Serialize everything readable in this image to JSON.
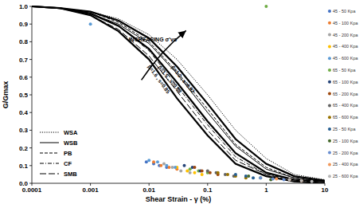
{
  "chart_data": {
    "type": "line",
    "y_label": "G/Gmax",
    "x_label": "Shear Strain - γ (%)",
    "log": "x",
    "grid": false,
    "legend": "lower left",
    "xlim": [
      0.0001,
      10
    ],
    "xticks": [
      0.0001,
      0.001,
      0.01,
      0.1,
      1,
      10
    ],
    "ylim": [
      0,
      1
    ],
    "yticks": [
      {
        "value": 0,
        "label": "0.0"
      },
      0.1,
      0.2,
      0.3,
      0.4,
      0.5,
      0.6,
      0.7,
      0.8,
      0.9,
      {
        "value": 1,
        "label": "1.0"
      }
    ],
    "annotations": [
      {
        "text": "INCREASING σ'vo",
        "x": 0.0045,
        "y": 0.8
      }
    ],
    "series": [
      {
        "name": "WSA",
        "type": "line",
        "color": "#000000",
        "line_style": "dotted",
        "x": [
          0.0001,
          0.0003,
          0.001,
          0.003,
          0.01,
          0.03,
          0.1,
          0.3,
          1,
          3,
          10
        ],
        "values": [
          1.0,
          0.99,
          0.97,
          0.93,
          0.84,
          0.7,
          0.5,
          0.3,
          0.14,
          0.05,
          0.02
        ]
      },
      {
        "name": "WSB",
        "type": "line",
        "color": "#000000",
        "line_style": "solid",
        "x": [
          0.0001,
          0.0003,
          0.001,
          0.003,
          0.01,
          0.03,
          0.1,
          0.3,
          1,
          3,
          10
        ],
        "values": [
          1.0,
          0.99,
          0.96,
          0.9,
          0.79,
          0.62,
          0.4,
          0.21,
          0.08,
          0.03,
          0.01
        ]
      },
      {
        "name": "PB",
        "type": "line",
        "color": "#000000",
        "line_style": "dashed",
        "x": [
          0.0001,
          0.0003,
          0.001,
          0.003,
          0.01,
          0.03,
          0.1,
          0.3,
          1,
          3,
          10
        ],
        "values": [
          1.0,
          0.99,
          0.97,
          0.91,
          0.8,
          0.63,
          0.42,
          0.22,
          0.09,
          0.03,
          0.01
        ]
      },
      {
        "name": "CF",
        "type": "line",
        "color": "#000000",
        "line_style": "dashdot",
        "x": [
          0.0001,
          0.0003,
          0.001,
          0.003,
          0.01,
          0.03,
          0.1,
          0.3,
          1,
          3,
          10
        ],
        "values": [
          1.0,
          0.99,
          0.96,
          0.89,
          0.75,
          0.55,
          0.33,
          0.15,
          0.05,
          0.02,
          0.0
        ]
      },
      {
        "name": "SMB",
        "type": "line",
        "color": "#000000",
        "line_style": "longdash",
        "x": [
          0.0001,
          0.0003,
          0.001,
          0.003,
          0.01,
          0.03,
          0.1,
          0.3,
          1,
          3,
          10
        ],
        "values": [
          1.0,
          0.99,
          0.95,
          0.87,
          0.72,
          0.52,
          0.3,
          0.13,
          0.05,
          0.01,
          0.0
        ]
      },
      {
        "name": "β=1.2 , s=0.92",
        "type": "line",
        "color": "#000000",
        "line_style": "bold",
        "x": [
          0.0001,
          0.0003,
          0.001,
          0.003,
          0.01,
          0.03,
          0.1,
          0.3,
          1,
          3,
          10
        ],
        "values": [
          1.0,
          0.99,
          0.97,
          0.92,
          0.82,
          0.66,
          0.45,
          0.25,
          0.11,
          0.04,
          0.015
        ]
      },
      {
        "name": "β=1.5 , s=0.88",
        "type": "line",
        "color": "#000000",
        "line_style": "bold",
        "x": [
          0.0001,
          0.0003,
          0.001,
          0.003,
          0.01,
          0.03,
          0.1,
          0.3,
          1,
          3,
          10
        ],
        "values": [
          1.0,
          0.99,
          0.96,
          0.89,
          0.76,
          0.57,
          0.35,
          0.17,
          0.06,
          0.02,
          0.01
        ]
      },
      {
        "name": "β=1.6 , s=0.85",
        "type": "line",
        "color": "#000000",
        "line_style": "bold",
        "x": [
          0.0001,
          0.0003,
          0.001,
          0.003,
          0.01,
          0.03,
          0.1,
          0.3,
          1,
          3,
          10
        ],
        "values": [
          1.0,
          0.99,
          0.95,
          0.86,
          0.7,
          0.48,
          0.27,
          0.11,
          0.04,
          0.01,
          0.0
        ]
      },
      {
        "name": "45 - 50 Kpa",
        "type": "scatter",
        "marker": "circle",
        "color": "#4472c4",
        "x": [
          0.009,
          0.012,
          0.015,
          0.02
        ],
        "values": [
          0.12,
          0.11,
          0.1,
          0.09
        ]
      },
      {
        "name": "45 - 100 Kpa",
        "type": "scatter",
        "marker": "circle",
        "color": "#ed7d31",
        "x": [
          0.012,
          0.016,
          0.022,
          0.03
        ],
        "values": [
          0.12,
          0.1,
          0.09,
          0.08
        ]
      },
      {
        "name": "45 - 200 Kpa",
        "type": "scatter",
        "marker": "circle",
        "color": "#a5a5a5",
        "x": [
          0.018,
          0.025,
          0.035,
          0.05
        ],
        "values": [
          0.11,
          0.09,
          0.07,
          0.06
        ]
      },
      {
        "name": "45 - 400 Kpa",
        "type": "scatter",
        "marker": "circle",
        "color": "#ffc000",
        "x": [
          0.03,
          0.045,
          0.06,
          0.08
        ],
        "values": [
          0.09,
          0.07,
          0.06,
          0.05
        ]
      },
      {
        "name": "45 - 600 Kpa",
        "type": "scatter",
        "marker": "circle",
        "color": "#5b9bd5",
        "x": [
          0.001,
          0.01,
          0.014,
          0.02,
          0.028
        ],
        "values": [
          0.9,
          0.13,
          0.12,
          0.1,
          0.09
        ]
      },
      {
        "name": "65 - 50 Kpa",
        "type": "scatter",
        "marker": "circle",
        "color": "#70ad47",
        "x": [
          1,
          0.05,
          0.07,
          0.1
        ],
        "values": [
          1.0,
          0.08,
          0.07,
          0.06
        ]
      },
      {
        "name": "65 - 100 Kpa",
        "type": "scatter",
        "marker": "circle",
        "color": "#264478",
        "x": [
          0.04,
          0.055,
          0.075
        ],
        "values": [
          0.1,
          0.09,
          0.07
        ]
      },
      {
        "name": "65 - 200 Kpa",
        "type": "scatter",
        "marker": "circle",
        "color": "#9e480e",
        "x": [
          0.06,
          0.08,
          0.11,
          0.15
        ],
        "values": [
          0.09,
          0.07,
          0.06,
          0.05
        ]
      },
      {
        "name": "65 - 400 Kpa",
        "type": "scatter",
        "marker": "circle",
        "color": "#636363",
        "x": [
          0.1,
          0.14,
          0.2,
          0.28
        ],
        "values": [
          0.07,
          0.06,
          0.05,
          0.04
        ]
      },
      {
        "name": "65 - 600 Kpa",
        "type": "scatter",
        "marker": "circle",
        "color": "#997300",
        "x": [
          0.15,
          0.22,
          0.3,
          0.45
        ],
        "values": [
          0.06,
          0.05,
          0.04,
          0.03
        ]
      },
      {
        "name": "25 - 50 Kpa",
        "type": "scatter",
        "marker": "circle",
        "color": "#255e91",
        "x": [
          0.3,
          0.45,
          0.6
        ],
        "values": [
          0.05,
          0.04,
          0.03
        ]
      },
      {
        "name": "25 - 100 Kpa",
        "type": "scatter",
        "marker": "circle",
        "color": "#43682b",
        "x": [
          0.5,
          0.8,
          1.2
        ],
        "values": [
          0.04,
          0.03,
          0.02
        ]
      },
      {
        "name": "25 - 200 Kpa",
        "type": "scatter",
        "marker": "circle",
        "color": "#698ed0",
        "x": [
          0.8,
          1.3,
          2
        ],
        "values": [
          0.03,
          0.025,
          0.02
        ]
      },
      {
        "name": "25 - 400 Kpa",
        "type": "scatter",
        "marker": "circle",
        "color": "#f1975a",
        "x": [
          1.5,
          2.5,
          4
        ],
        "values": [
          0.025,
          0.02,
          0.015
        ]
      },
      {
        "name": "25 - 600 Kpa",
        "type": "scatter",
        "marker": "circle",
        "color": "#b7b7b7",
        "x": [
          2.5,
          4,
          6
        ],
        "values": [
          0.02,
          0.015,
          0.01
        ]
      }
    ]
  }
}
